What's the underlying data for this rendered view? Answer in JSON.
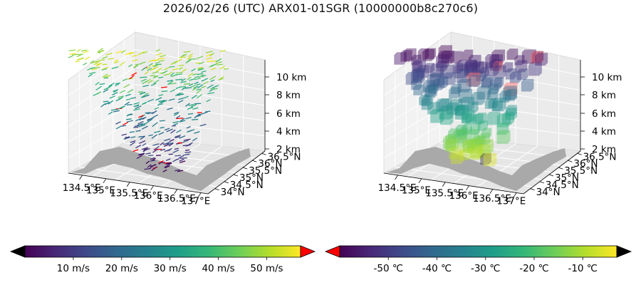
{
  "figure": {
    "title": "2026/02/26 (UTC) ARX01-01SGR (10000000b8c270c6)"
  },
  "chart_data": [
    {
      "type": "3d-wind-barbs",
      "title": "",
      "x_ticks": [
        "134.5°E",
        "135°E",
        "135.5°E",
        "136°E",
        "136.5°E",
        "137°E"
      ],
      "y_ticks": [
        "34°N",
        "34.5°N",
        "35°N",
        "35.5°N",
        "36°N",
        "36.5°N"
      ],
      "z_ticks": [
        "2 km",
        "4 km",
        "6 km",
        "8 km",
        "10 km"
      ],
      "colorbar": {
        "colormap": "viridis",
        "ticks": [
          "10 m/s",
          "20 m/s",
          "30 m/s",
          "40 m/s",
          "50 m/s"
        ],
        "tick_values": [
          10,
          20,
          30,
          40,
          50
        ],
        "range": [
          0,
          57
        ],
        "extend_low_color": "#000000",
        "extend_high_color": "#ff0000"
      },
      "land_color": "#a9a9a9"
    },
    {
      "type": "3d-voxel",
      "title": "",
      "x_ticks": [
        "134.5°E",
        "135°E",
        "135.5°E",
        "136°E",
        "136.5°E",
        "137°E"
      ],
      "y_ticks": [
        "34°N",
        "34.5°N",
        "35°N",
        "35.5°N",
        "36°N",
        "36.5°N"
      ],
      "z_ticks": [
        "2 km",
        "4 km",
        "6 km",
        "8 km",
        "10 km"
      ],
      "colorbar": {
        "colormap": "viridis",
        "ticks": [
          "-50 ℃",
          "-40 ℃",
          "-30 ℃",
          "-20 ℃",
          "-10 ℃"
        ],
        "tick_values": [
          -50,
          -40,
          -30,
          -20,
          -10
        ],
        "range": [
          -60,
          -3
        ],
        "extend_low_color": "#ff0000",
        "extend_high_color": "#000000"
      },
      "land_color": "#a9a9a9"
    }
  ]
}
